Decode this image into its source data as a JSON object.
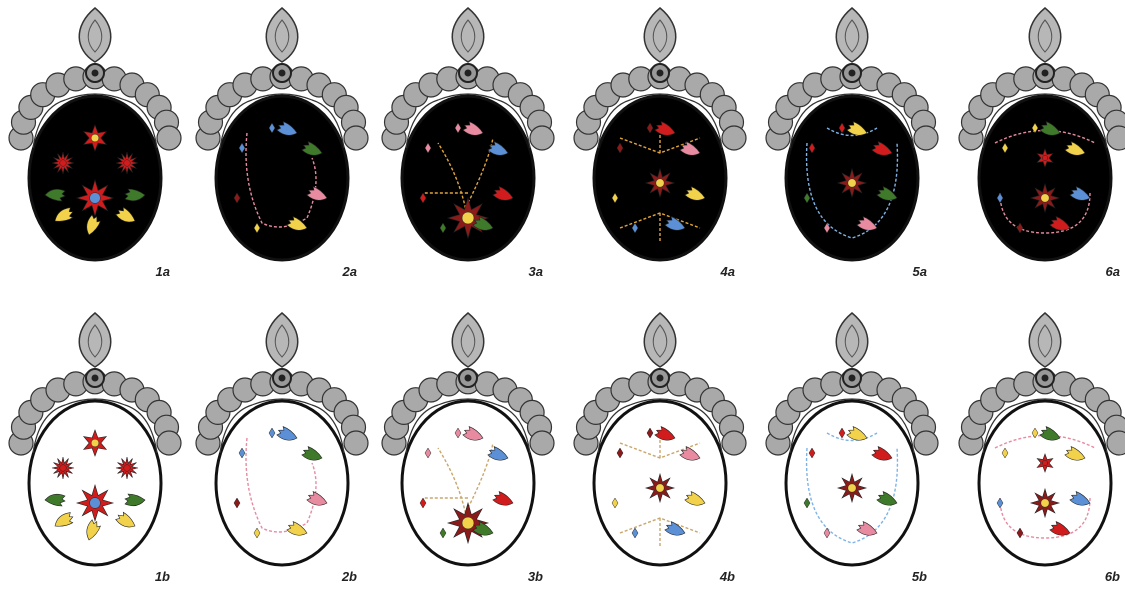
{
  "panels": [
    {
      "label": "1a"
    },
    {
      "label": "2a"
    },
    {
      "label": "3a"
    },
    {
      "label": "4a"
    },
    {
      "label": "5a"
    },
    {
      "label": "6a"
    },
    {
      "label": "1b"
    },
    {
      "label": "2b"
    },
    {
      "label": "3b"
    },
    {
      "label": "4b"
    },
    {
      "label": "5b"
    },
    {
      "label": "6b"
    }
  ]
}
